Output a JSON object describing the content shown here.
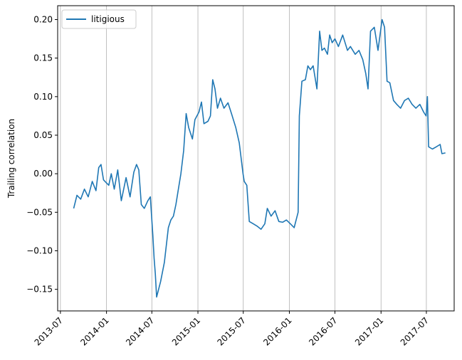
{
  "chart_data": {
    "type": "line",
    "title": "",
    "xlabel": "",
    "ylabel": "Trailing correlation",
    "x_axis_type": "date",
    "xlim": [
      "2013-06-20",
      "2017-10-20"
    ],
    "ylim": [
      -0.178,
      0.218
    ],
    "x_ticks": [
      "2013-07",
      "2014-01",
      "2014-07",
      "2015-01",
      "2015-07",
      "2016-01",
      "2016-07",
      "2017-01",
      "2017-07"
    ],
    "y_ticks": [
      -0.15,
      -0.1,
      -0.05,
      0.0,
      0.05,
      0.1,
      0.15,
      0.2
    ],
    "y_tick_labels": [
      "−0.15",
      "−0.10",
      "−0.05",
      "0.00",
      "0.05",
      "0.10",
      "0.15",
      "0.20"
    ],
    "grid": "vertical at x ticks",
    "legend_position": "top-left",
    "series": [
      {
        "name": "litigious",
        "color": "#1f77b4",
        "points": [
          [
            "2013-08-23",
            -0.045
          ],
          [
            "2013-09-05",
            -0.028
          ],
          [
            "2013-09-20",
            -0.033
          ],
          [
            "2013-10-05",
            -0.02
          ],
          [
            "2013-10-20",
            -0.03
          ],
          [
            "2013-11-05",
            -0.01
          ],
          [
            "2013-11-20",
            -0.022
          ],
          [
            "2013-12-01",
            0.008
          ],
          [
            "2013-12-10",
            0.012
          ],
          [
            "2013-12-20",
            -0.008
          ],
          [
            "2014-01-01",
            -0.012
          ],
          [
            "2014-01-10",
            -0.015
          ],
          [
            "2014-01-20",
            0.0
          ],
          [
            "2014-02-01",
            -0.02
          ],
          [
            "2014-02-15",
            0.005
          ],
          [
            "2014-03-01",
            -0.035
          ],
          [
            "2014-03-20",
            -0.005
          ],
          [
            "2014-04-05",
            -0.03
          ],
          [
            "2014-04-20",
            0.002
          ],
          [
            "2014-05-01",
            0.012
          ],
          [
            "2014-05-10",
            0.005
          ],
          [
            "2014-05-20",
            -0.04
          ],
          [
            "2014-06-01",
            -0.045
          ],
          [
            "2014-06-15",
            -0.035
          ],
          [
            "2014-06-25",
            -0.03
          ],
          [
            "2014-07-05",
            -0.08
          ],
          [
            "2014-07-10",
            -0.11
          ],
          [
            "2014-07-15",
            -0.13
          ],
          [
            "2014-07-20",
            -0.16
          ],
          [
            "2014-08-05",
            -0.14
          ],
          [
            "2014-08-20",
            -0.115
          ],
          [
            "2014-09-05",
            -0.07
          ],
          [
            "2014-09-15",
            -0.06
          ],
          [
            "2014-09-25",
            -0.055
          ],
          [
            "2014-10-05",
            -0.04
          ],
          [
            "2014-10-15",
            -0.02
          ],
          [
            "2014-10-25",
            0.0
          ],
          [
            "2014-11-05",
            0.03
          ],
          [
            "2014-11-15",
            0.078
          ],
          [
            "2014-11-25",
            0.06
          ],
          [
            "2014-12-10",
            0.045
          ],
          [
            "2014-12-20",
            0.07
          ],
          [
            "2015-01-05",
            0.08
          ],
          [
            "2015-01-15",
            0.093
          ],
          [
            "2015-01-25",
            0.065
          ],
          [
            "2015-02-10",
            0.068
          ],
          [
            "2015-02-20",
            0.075
          ],
          [
            "2015-03-01",
            0.122
          ],
          [
            "2015-03-10",
            0.11
          ],
          [
            "2015-03-20",
            0.085
          ],
          [
            "2015-04-01",
            0.098
          ],
          [
            "2015-04-15",
            0.085
          ],
          [
            "2015-05-01",
            0.092
          ],
          [
            "2015-05-15",
            0.078
          ],
          [
            "2015-06-01",
            0.06
          ],
          [
            "2015-06-15",
            0.04
          ],
          [
            "2015-06-30",
            0.0
          ],
          [
            "2015-07-05",
            -0.01
          ],
          [
            "2015-07-15",
            -0.015
          ],
          [
            "2015-07-25",
            -0.062
          ],
          [
            "2015-08-10",
            -0.065
          ],
          [
            "2015-08-25",
            -0.068
          ],
          [
            "2015-09-10",
            -0.072
          ],
          [
            "2015-09-25",
            -0.065
          ],
          [
            "2015-10-05",
            -0.045
          ],
          [
            "2015-10-20",
            -0.055
          ],
          [
            "2015-11-05",
            -0.048
          ],
          [
            "2015-11-20",
            -0.062
          ],
          [
            "2015-12-05",
            -0.063
          ],
          [
            "2015-12-20",
            -0.06
          ],
          [
            "2016-01-05",
            -0.065
          ],
          [
            "2016-01-20",
            -0.07
          ],
          [
            "2016-02-05",
            -0.05
          ],
          [
            "2016-02-10",
            0.075
          ],
          [
            "2016-02-20",
            0.12
          ],
          [
            "2016-03-05",
            0.122
          ],
          [
            "2016-03-15",
            0.14
          ],
          [
            "2016-03-25",
            0.135
          ],
          [
            "2016-04-05",
            0.14
          ],
          [
            "2016-04-20",
            0.11
          ],
          [
            "2016-05-01",
            0.185
          ],
          [
            "2016-05-10",
            0.16
          ],
          [
            "2016-05-20",
            0.163
          ],
          [
            "2016-06-01",
            0.155
          ],
          [
            "2016-06-10",
            0.18
          ],
          [
            "2016-06-20",
            0.17
          ],
          [
            "2016-07-01",
            0.175
          ],
          [
            "2016-07-15",
            0.165
          ],
          [
            "2016-08-01",
            0.18
          ],
          [
            "2016-08-20",
            0.16
          ],
          [
            "2016-09-01",
            0.165
          ],
          [
            "2016-09-20",
            0.155
          ],
          [
            "2016-10-05",
            0.16
          ],
          [
            "2016-10-20",
            0.148
          ],
          [
            "2016-11-01",
            0.13
          ],
          [
            "2016-11-10",
            0.11
          ],
          [
            "2016-11-20",
            0.185
          ],
          [
            "2016-12-05",
            0.19
          ],
          [
            "2016-12-20",
            0.16
          ],
          [
            "2017-01-05",
            0.2
          ],
          [
            "2017-01-15",
            0.19
          ],
          [
            "2017-01-25",
            0.12
          ],
          [
            "2017-02-05",
            0.118
          ],
          [
            "2017-02-20",
            0.095
          ],
          [
            "2017-03-05",
            0.09
          ],
          [
            "2017-03-20",
            0.085
          ],
          [
            "2017-04-05",
            0.095
          ],
          [
            "2017-04-20",
            0.098
          ],
          [
            "2017-05-05",
            0.09
          ],
          [
            "2017-05-20",
            0.085
          ],
          [
            "2017-06-05",
            0.09
          ],
          [
            "2017-06-20",
            0.08
          ],
          [
            "2017-06-30",
            0.075
          ],
          [
            "2017-07-05",
            0.1
          ],
          [
            "2017-07-10",
            0.035
          ],
          [
            "2017-07-25",
            0.032
          ],
          [
            "2017-08-10",
            0.035
          ],
          [
            "2017-08-25",
            0.038
          ],
          [
            "2017-09-01",
            0.026
          ],
          [
            "2017-09-15",
            0.027
          ]
        ]
      }
    ]
  }
}
